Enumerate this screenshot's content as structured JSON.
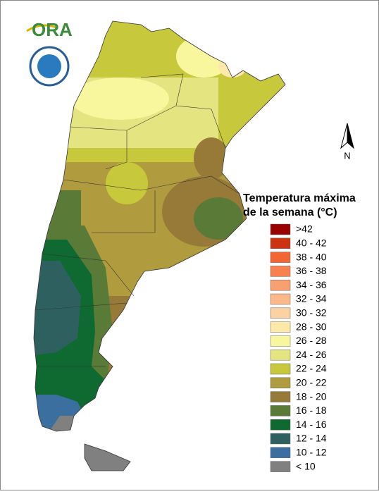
{
  "logo": {
    "text": "ORA"
  },
  "compass": {
    "label": "N"
  },
  "legend": {
    "title_lines": [
      "Temperatura máxima",
      "de la semana (°C)"
    ],
    "items": [
      {
        "label": ">42",
        "color": "#990000"
      },
      {
        "label": "40 - 42",
        "color": "#cc3311"
      },
      {
        "label": "38 - 40",
        "color": "#f26633"
      },
      {
        "label": "36 - 38",
        "color": "#f8814f"
      },
      {
        "label": "34 - 36",
        "color": "#f9a070"
      },
      {
        "label": "32 - 34",
        "color": "#fbb889"
      },
      {
        "label": "30 - 32",
        "color": "#fcd2a2"
      },
      {
        "label": "28 - 30",
        "color": "#fde9a8"
      },
      {
        "label": "26 - 28",
        "color": "#f9f79e"
      },
      {
        "label": "24 - 26",
        "color": "#e4e480"
      },
      {
        "label": "22 - 24",
        "color": "#c8c83c"
      },
      {
        "label": "20 - 22",
        "color": "#b09c3e"
      },
      {
        "label": "18 - 20",
        "color": "#987a38"
      },
      {
        "label": "16 - 18",
        "color": "#5a7a38"
      },
      {
        "label": "14 - 16",
        "color": "#0e6a30"
      },
      {
        "label": "12 - 14",
        "color": "#2f6060"
      },
      {
        "label": "10 - 12",
        "color": "#3a6fa0"
      },
      {
        "label": "< 10",
        "color": "#808080"
      }
    ]
  }
}
